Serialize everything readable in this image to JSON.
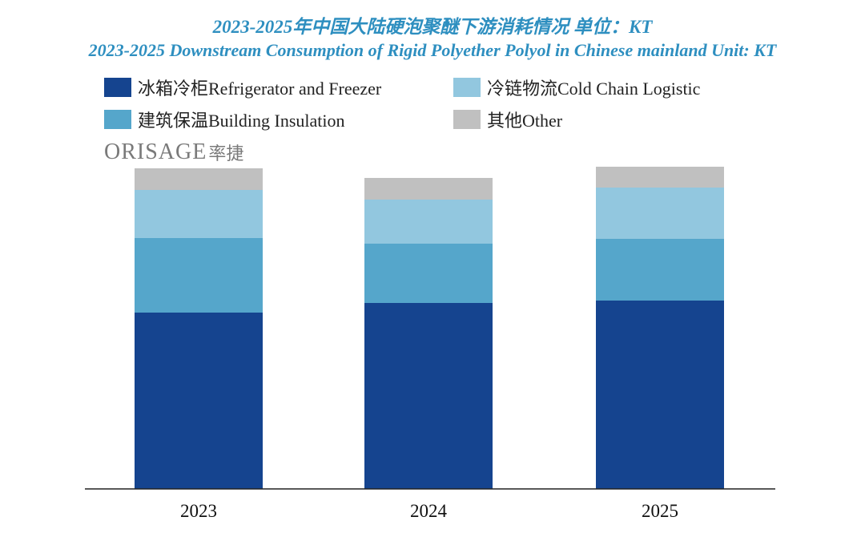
{
  "chart_data": {
    "type": "bar",
    "stacked": true,
    "title": "2023-2025年中国大陆硬泡聚醚下游消耗情况  单位：KT",
    "subtitle": "2023-2025 Downstream Consumption of Rigid Polyether Polyol in Chinese mainland Unit: KT",
    "categories": [
      "2023",
      "2024",
      "2025"
    ],
    "series": [
      {
        "name": "冰箱冷柜Refrigerator and Freezer",
        "color": "#15448f",
        "values": [
          220,
          232,
          235
        ]
      },
      {
        "name": "建筑保温Building Insulation",
        "color": "#55a6cb",
        "values": [
          93,
          74,
          77
        ]
      },
      {
        "name": "冷链物流Cold Chain Logistic",
        "color": "#92c7df",
        "values": [
          60,
          55,
          64
        ]
      },
      {
        "name": "其他Other",
        "color": "#c0c0c0",
        "values": [
          27,
          27,
          26
        ]
      }
    ],
    "legend_position": "top",
    "ylim": [
      0,
      400
    ],
    "grid": false
  },
  "watermark": {
    "logo_text": "ORISAGE",
    "logo_cn": "率捷"
  }
}
